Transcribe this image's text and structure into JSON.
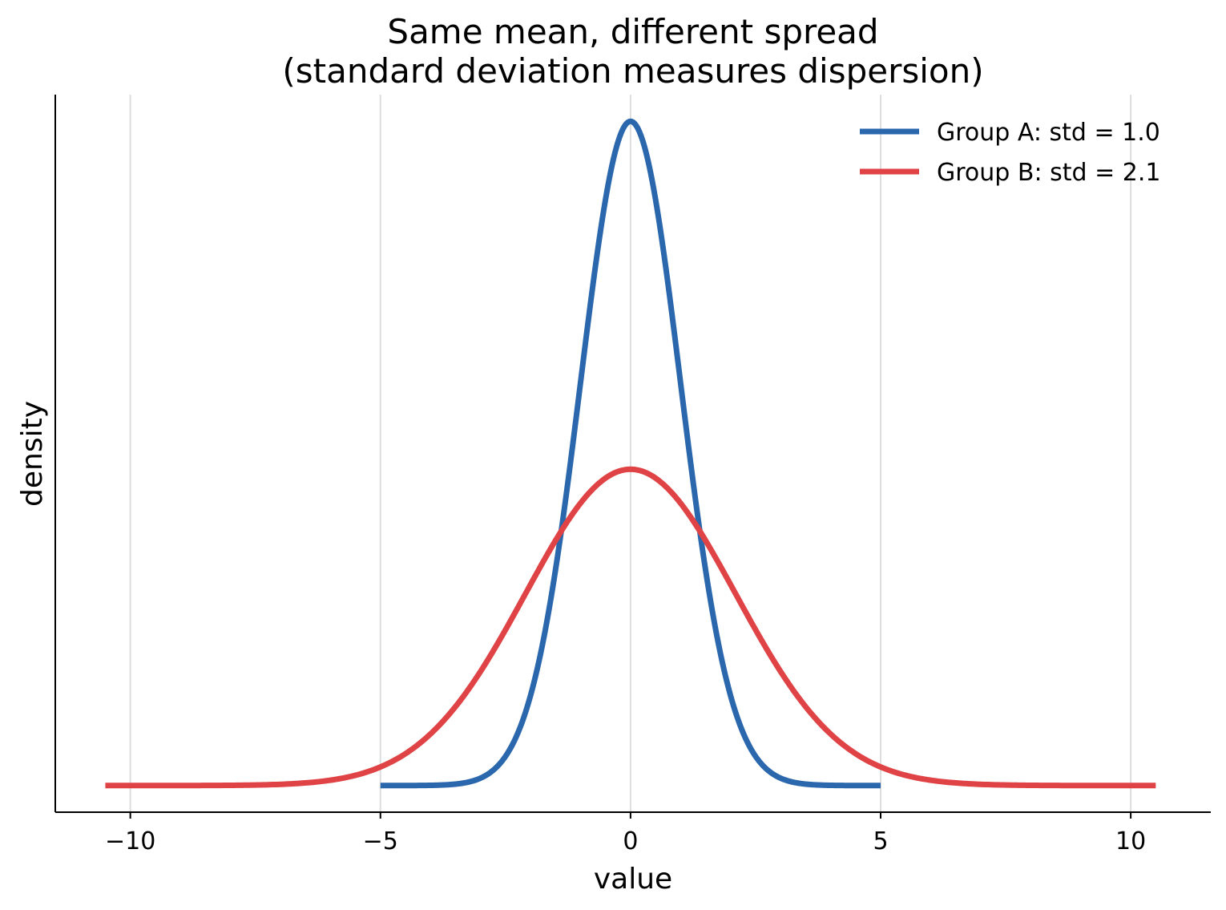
{
  "chart_data": {
    "type": "line",
    "title": "Same mean, different spread",
    "subtitle": "(standard deviation measures dispersion)",
    "xlabel": "value",
    "ylabel": "density",
    "xlim": [
      -11.5,
      11.6
    ],
    "ylim": [
      -0.016,
      0.415
    ],
    "x_ticks": [
      -10,
      -5,
      0,
      5,
      10
    ],
    "x_tick_labels": [
      "−10",
      "−5",
      "0",
      "5",
      "10"
    ],
    "y_ticks": [],
    "grid": "x-only",
    "legend_position": "top-right",
    "series": [
      {
        "name": "Group A: std = 1.0",
        "distribution": "normal",
        "mean": 0,
        "std": 1.0,
        "x_range": [
          -5.0,
          5.0
        ],
        "color": "#2b67ac"
      },
      {
        "name": "Group B: std = 2.1",
        "distribution": "normal",
        "mean": 0,
        "std": 2.1,
        "x_range": [
          -10.5,
          10.5
        ],
        "color": "#e04345"
      }
    ]
  }
}
